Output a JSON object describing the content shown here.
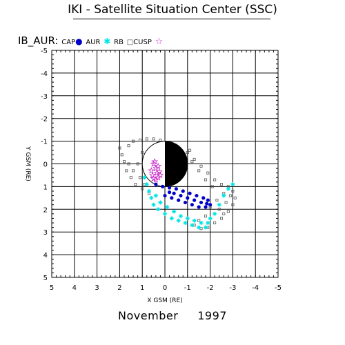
{
  "header": {
    "title": "IKI - Satellite Situation Center (SSC)"
  },
  "legend": {
    "label": "IB_AUR:",
    "items": [
      {
        "name": "CAP",
        "symbol": "dot",
        "color": "#0000cc"
      },
      {
        "name": "AUR",
        "symbol": "star",
        "color": "#00e5e5"
      },
      {
        "name": "RB",
        "symbol": "square",
        "color": "#555555"
      },
      {
        "name": "CUSP",
        "symbol": "star5",
        "color": "#cc33cc"
      }
    ]
  },
  "footer": {
    "month": "November",
    "year": "1997"
  },
  "chart_data": {
    "type": "scatter",
    "xlabel": "X GSM (RE)",
    "ylabel": "Y GSM (RE)",
    "xlim": [
      5,
      -5
    ],
    "ylim": [
      -5,
      5
    ],
    "x_ticks": [
      5,
      4,
      3,
      2,
      1,
      0,
      -1,
      -2,
      -3,
      -4,
      -5
    ],
    "y_ticks": [
      -5,
      -4,
      -3,
      -2,
      -1,
      0,
      1,
      2,
      3,
      4,
      5
    ],
    "x_tick_labels": [
      "5",
      "4",
      "3",
      "2",
      "1",
      "0",
      "-1",
      "-2",
      "-3",
      "-4",
      "-5"
    ],
    "y_tick_labels": [
      "-5",
      "-4",
      "-3",
      "-2",
      "-1",
      "0",
      "1",
      "2",
      "3",
      "4",
      "5"
    ],
    "grid": true,
    "earth": {
      "center": [
        0,
        0
      ],
      "radius": 1,
      "night_side": "x<0"
    },
    "series": [
      {
        "name": "RB",
        "color": "#555555",
        "marker": "square",
        "points": [
          [
            2.0,
            -0.7
          ],
          [
            1.9,
            -0.4
          ],
          [
            1.8,
            -0.1
          ],
          [
            1.6,
            -0.8
          ],
          [
            1.4,
            -1.0
          ],
          [
            1.1,
            -1.05
          ],
          [
            0.8,
            -1.1
          ],
          [
            0.5,
            -1.1
          ],
          [
            0.2,
            -1.05
          ],
          [
            1.7,
            0.3
          ],
          [
            1.5,
            0.6
          ],
          [
            1.3,
            0.9
          ],
          [
            1.0,
            1.1
          ],
          [
            0.7,
            1.3
          ],
          [
            1.2,
            0.0
          ],
          [
            1.0,
            -0.5
          ],
          [
            1.4,
            0.3
          ],
          [
            1.6,
            0.0
          ],
          [
            1.1,
            0.6
          ],
          [
            0.9,
            0.9
          ],
          [
            -1.0,
            -0.5
          ],
          [
            -1.3,
            -0.2
          ],
          [
            -1.6,
            0.1
          ],
          [
            -1.9,
            0.4
          ],
          [
            -2.2,
            0.7
          ],
          [
            -2.5,
            0.9
          ],
          [
            -2.8,
            1.0
          ],
          [
            -3.0,
            1.2
          ],
          [
            -3.1,
            1.5
          ],
          [
            -3.0,
            1.8
          ],
          [
            -2.8,
            2.1
          ],
          [
            -2.5,
            2.4
          ],
          [
            -2.2,
            2.6
          ],
          [
            -1.9,
            2.8
          ],
          [
            -1.6,
            2.85
          ],
          [
            -1.3,
            2.7
          ],
          [
            -2.6,
            1.3
          ],
          [
            -2.3,
            1.6
          ],
          [
            -2.0,
            1.9
          ],
          [
            -2.7,
            1.7
          ],
          [
            -2.4,
            2.0
          ],
          [
            -1.8,
            2.3
          ],
          [
            -1.5,
            2.5
          ],
          [
            -1.2,
            -0.1
          ],
          [
            -1.5,
            0.3
          ],
          [
            -1.8,
            0.7
          ],
          [
            -2.1,
            1.0
          ],
          [
            -2.9,
            1.4
          ],
          [
            -2.6,
            2.2
          ],
          [
            -1.1,
            -0.6
          ]
        ]
      },
      {
        "name": "CAP",
        "color": "#0000cc",
        "marker": "dot",
        "points": [
          [
            0.4,
            0.9
          ],
          [
            0.1,
            1.0
          ],
          [
            -0.2,
            1.05
          ],
          [
            -0.5,
            1.1
          ],
          [
            -0.8,
            1.2
          ],
          [
            -1.1,
            1.3
          ],
          [
            -1.4,
            1.4
          ],
          [
            -1.7,
            1.5
          ],
          [
            -1.9,
            1.6
          ],
          [
            -2.0,
            1.8
          ],
          [
            -1.8,
            1.9
          ],
          [
            -1.5,
            1.9
          ],
          [
            -1.2,
            1.8
          ],
          [
            -0.9,
            1.7
          ],
          [
            -0.6,
            1.6
          ],
          [
            -0.3,
            1.5
          ],
          [
            0.0,
            1.4
          ],
          [
            -0.4,
            1.3
          ],
          [
            -0.7,
            1.4
          ],
          [
            -1.0,
            1.5
          ],
          [
            -1.3,
            1.6
          ],
          [
            -1.6,
            1.7
          ],
          [
            -0.2,
            1.25
          ],
          [
            -1.85,
            1.75
          ]
        ]
      },
      {
        "name": "AUR",
        "color": "#00e5e5",
        "marker": "star",
        "points": [
          [
            0.9,
            0.6
          ],
          [
            0.8,
            0.9
          ],
          [
            0.7,
            1.2
          ],
          [
            0.6,
            1.5
          ],
          [
            0.5,
            1.8
          ],
          [
            0.3,
            2.0
          ],
          [
            0.0,
            2.2
          ],
          [
            -0.3,
            2.4
          ],
          [
            -0.6,
            2.5
          ],
          [
            -0.9,
            2.6
          ],
          [
            -1.2,
            2.7
          ],
          [
            -1.5,
            2.8
          ],
          [
            -1.8,
            2.8
          ],
          [
            -1.9,
            2.6
          ],
          [
            -1.6,
            2.6
          ],
          [
            -1.3,
            2.5
          ],
          [
            -1.0,
            2.4
          ],
          [
            -0.7,
            2.3
          ],
          [
            -0.4,
            2.1
          ],
          [
            -0.1,
            1.9
          ],
          [
            0.2,
            1.7
          ],
          [
            0.4,
            1.4
          ],
          [
            -2.0,
            2.4
          ],
          [
            -2.2,
            2.2
          ],
          [
            -2.4,
            1.8
          ],
          [
            -2.6,
            1.4
          ],
          [
            -2.8,
            1.1
          ],
          [
            -3.0,
            0.9
          ]
        ]
      },
      {
        "name": "CUSP",
        "color": "#cc33cc",
        "marker": "star5",
        "points": [
          [
            0.5,
            0.0
          ],
          [
            0.4,
            0.2
          ],
          [
            0.35,
            0.4
          ],
          [
            0.3,
            0.6
          ],
          [
            0.4,
            0.7
          ],
          [
            0.55,
            0.5
          ],
          [
            0.6,
            0.3
          ],
          [
            0.25,
            0.35
          ],
          [
            0.45,
            -0.1
          ],
          [
            0.3,
            0.1
          ],
          [
            0.2,
            0.5
          ],
          [
            0.5,
            0.65
          ]
        ]
      }
    ]
  }
}
